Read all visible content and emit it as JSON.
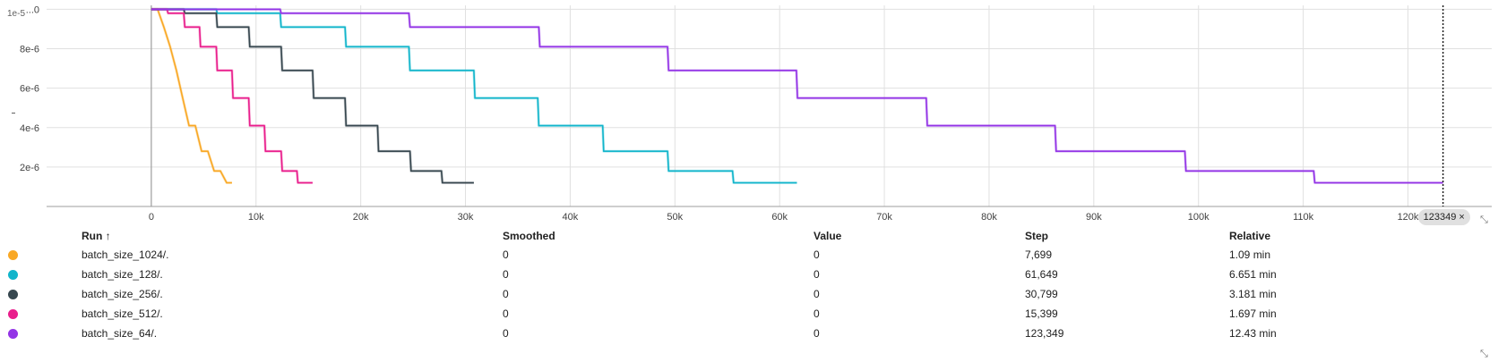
{
  "colors": {
    "batch_size_1024": "#f9a825",
    "batch_size_128": "#12b5cb",
    "batch_size_256": "#37474f",
    "batch_size_512": "#e91e8c",
    "batch_size_64": "#9334e6",
    "grid": "#e0e0e0",
    "axis": "#9e9e9e"
  },
  "chart_data": {
    "type": "line",
    "title": "",
    "xlabel": "",
    "ylabel": "",
    "xlim": [
      -10000,
      128000
    ],
    "ylim": [
      0,
      1.02e-05
    ],
    "x_ticks": [
      0,
      10000,
      20000,
      30000,
      40000,
      50000,
      60000,
      70000,
      80000,
      90000,
      100000,
      110000,
      120000
    ],
    "x_tick_labels": [
      "0",
      "10k",
      "20k",
      "30k",
      "40k",
      "50k",
      "60k",
      "70k",
      "80k",
      "90k",
      "100k",
      "110k",
      "120k"
    ],
    "y_ticks": [
      2e-06,
      4e-06,
      6e-06,
      8e-06,
      1e-05
    ],
    "y_tick_labels": [
      "2e-6",
      "4e-6",
      "6e-6",
      "8e-6",
      "...0"
    ],
    "grid": true,
    "cursor_step": 123349,
    "series": [
      {
        "name": "batch_size_1024/.",
        "color_key": "batch_size_1024",
        "x": [
          0,
          600,
          1200,
          1800,
          2400,
          3000,
          3600,
          4200,
          4800,
          5400,
          6000,
          6600,
          7200,
          7699
        ],
        "y": [
          1e-05,
          1e-05,
          9.1e-06,
          8.1e-06,
          6.9e-06,
          5.5e-06,
          4.1e-06,
          4.1e-06,
          2.8e-06,
          2.8e-06,
          1.8e-06,
          1.8e-06,
          1.2e-06,
          1.2e-06
        ]
      },
      {
        "name": "batch_size_128/.",
        "color_key": "batch_size_128",
        "x": [
          0,
          6200,
          6300,
          12300,
          12400,
          18500,
          18600,
          24600,
          24700,
          30800,
          30900,
          36900,
          37000,
          43100,
          43200,
          49300,
          49400,
          55500,
          55600,
          61649
        ],
        "y": [
          1e-05,
          1e-05,
          9.8e-06,
          9.8e-06,
          9.1e-06,
          9.1e-06,
          8.1e-06,
          8.1e-06,
          6.9e-06,
          6.9e-06,
          5.5e-06,
          5.5e-06,
          4.1e-06,
          4.1e-06,
          2.8e-06,
          2.8e-06,
          1.8e-06,
          1.8e-06,
          1.2e-06,
          1.2e-06
        ]
      },
      {
        "name": "batch_size_256/.",
        "color_key": "batch_size_256",
        "x": [
          0,
          3100,
          3200,
          6200,
          6300,
          9300,
          9400,
          12400,
          12500,
          15400,
          15500,
          18500,
          18600,
          21600,
          21700,
          24700,
          24800,
          27700,
          27800,
          30799
        ],
        "y": [
          1e-05,
          1e-05,
          9.8e-06,
          9.8e-06,
          9.1e-06,
          9.1e-06,
          8.1e-06,
          8.1e-06,
          6.9e-06,
          6.9e-06,
          5.5e-06,
          5.5e-06,
          4.1e-06,
          4.1e-06,
          2.8e-06,
          2.8e-06,
          1.8e-06,
          1.8e-06,
          1.2e-06,
          1.2e-06
        ]
      },
      {
        "name": "batch_size_512/.",
        "color_key": "batch_size_512",
        "x": [
          0,
          1500,
          1600,
          3100,
          3200,
          4600,
          4700,
          6200,
          6300,
          7700,
          7800,
          9300,
          9400,
          10800,
          10900,
          12400,
          12500,
          13900,
          14000,
          15399
        ],
        "y": [
          1e-05,
          1e-05,
          9.8e-06,
          9.8e-06,
          9.1e-06,
          9.1e-06,
          8.1e-06,
          8.1e-06,
          6.9e-06,
          6.9e-06,
          5.5e-06,
          5.5e-06,
          4.1e-06,
          4.1e-06,
          2.8e-06,
          2.8e-06,
          1.8e-06,
          1.8e-06,
          1.2e-06,
          1.2e-06
        ]
      },
      {
        "name": "batch_size_64/.",
        "color_key": "batch_size_64",
        "x": [
          0,
          12300,
          12400,
          24600,
          24700,
          37000,
          37100,
          49300,
          49400,
          61600,
          61700,
          74000,
          74100,
          86300,
          86400,
          98700,
          98800,
          111000,
          111100,
          123349
        ],
        "y": [
          1e-05,
          1e-05,
          9.8e-06,
          9.8e-06,
          9.1e-06,
          9.1e-06,
          8.1e-06,
          8.1e-06,
          6.9e-06,
          6.9e-06,
          5.5e-06,
          5.5e-06,
          4.1e-06,
          4.1e-06,
          2.8e-06,
          2.8e-06,
          1.8e-06,
          1.8e-06,
          1.2e-06,
          1.2e-06
        ]
      }
    ]
  },
  "chart_chrome": {
    "y_icon_text": "1e-5",
    "step_badge_value": "123349",
    "step_badge_close": "×"
  },
  "table": {
    "headers": {
      "run": "Run ↑",
      "smoothed": "Smoothed",
      "value": "Value",
      "step": "Step",
      "relative": "Relative"
    },
    "rows": [
      {
        "color_key": "batch_size_1024",
        "run": "batch_size_1024/.",
        "smoothed": "0",
        "value": "0",
        "step": "7,699",
        "relative": "1.09 min"
      },
      {
        "color_key": "batch_size_128",
        "run": "batch_size_128/.",
        "smoothed": "0",
        "value": "0",
        "step": "61,649",
        "relative": "6.651 min"
      },
      {
        "color_key": "batch_size_256",
        "run": "batch_size_256/.",
        "smoothed": "0",
        "value": "0",
        "step": "30,799",
        "relative": "3.181 min"
      },
      {
        "color_key": "batch_size_512",
        "run": "batch_size_512/.",
        "smoothed": "0",
        "value": "0",
        "step": "15,399",
        "relative": "1.697 min"
      },
      {
        "color_key": "batch_size_64",
        "run": "batch_size_64/.",
        "smoothed": "0",
        "value": "0",
        "step": "123,349",
        "relative": "12.43 min"
      }
    ]
  }
}
